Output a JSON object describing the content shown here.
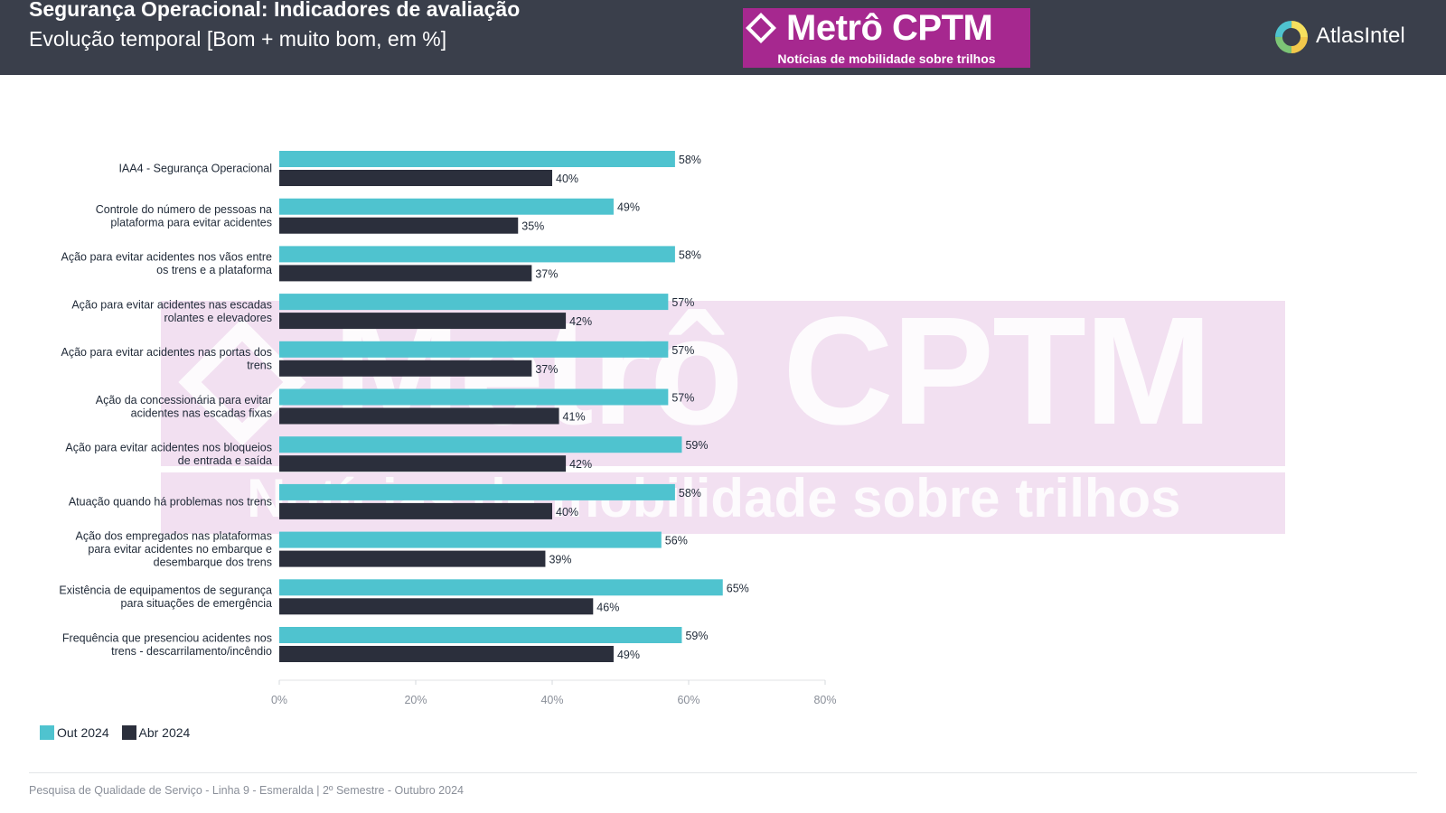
{
  "header": {
    "title": "Segurança Operacional: Indicadores de avaliação",
    "subtitle": "Evolução temporal [Bom + muito bom, em %]",
    "brand_name": "Metrô CPTM",
    "brand_tagline": "Notícias de mobilidade sobre trilhos",
    "atlas_name": "AtlasIntel"
  },
  "colors": {
    "header_bg": "#3a3f4b",
    "series_out": "#4fc3cf",
    "series_abr": "#2b2f3c",
    "brand": "#a6288f"
  },
  "chart_data": {
    "type": "bar",
    "orientation": "horizontal",
    "categories": [
      [
        "IAA4 - Segurança Operacional"
      ],
      [
        "Controle do número de pessoas na",
        "plataforma para evitar acidentes"
      ],
      [
        "Ação para evitar acidentes nos vãos entre",
        "os trens e a plataforma"
      ],
      [
        "Ação para evitar acidentes nas escadas",
        "rolantes e elevadores"
      ],
      [
        "Ação para evitar acidentes nas portas dos",
        "trens"
      ],
      [
        "Ação da concessionária para evitar",
        "acidentes nas escadas fixas"
      ],
      [
        "Ação para evitar acidentes nos bloqueios",
        "de entrada e saída"
      ],
      [
        "Atuação quando há problemas nos trens"
      ],
      [
        "Ação dos empregados nas plataformas",
        "para evitar acidentes no embarque e",
        "desembarque dos trens"
      ],
      [
        "Existência de equipamentos de segurança",
        "para situações de emergência"
      ],
      [
        "Frequência que presenciou acidentes nos",
        "trens - descarrilamento/incêndio"
      ]
    ],
    "series": [
      {
        "name": "Out 2024",
        "color": "#4fc3cf",
        "values": [
          58,
          49,
          58,
          57,
          57,
          57,
          59,
          58,
          56,
          65,
          59
        ]
      },
      {
        "name": "Abr 2024",
        "color": "#2b2f3c",
        "values": [
          40,
          35,
          37,
          42,
          37,
          41,
          42,
          40,
          39,
          46,
          49
        ]
      }
    ],
    "value_suffix": "%",
    "xlim": [
      0,
      80
    ],
    "xticks": [
      0,
      20,
      40,
      60,
      80
    ],
    "xtick_labels": [
      "0%",
      "20%",
      "40%",
      "60%",
      "80%"
    ],
    "legend": "bottom-left",
    "grid": false
  },
  "footer": "Pesquisa de Qualidade de Serviço - Linha 9 - Esmeralda | 2º Semestre - Outubro 2024"
}
